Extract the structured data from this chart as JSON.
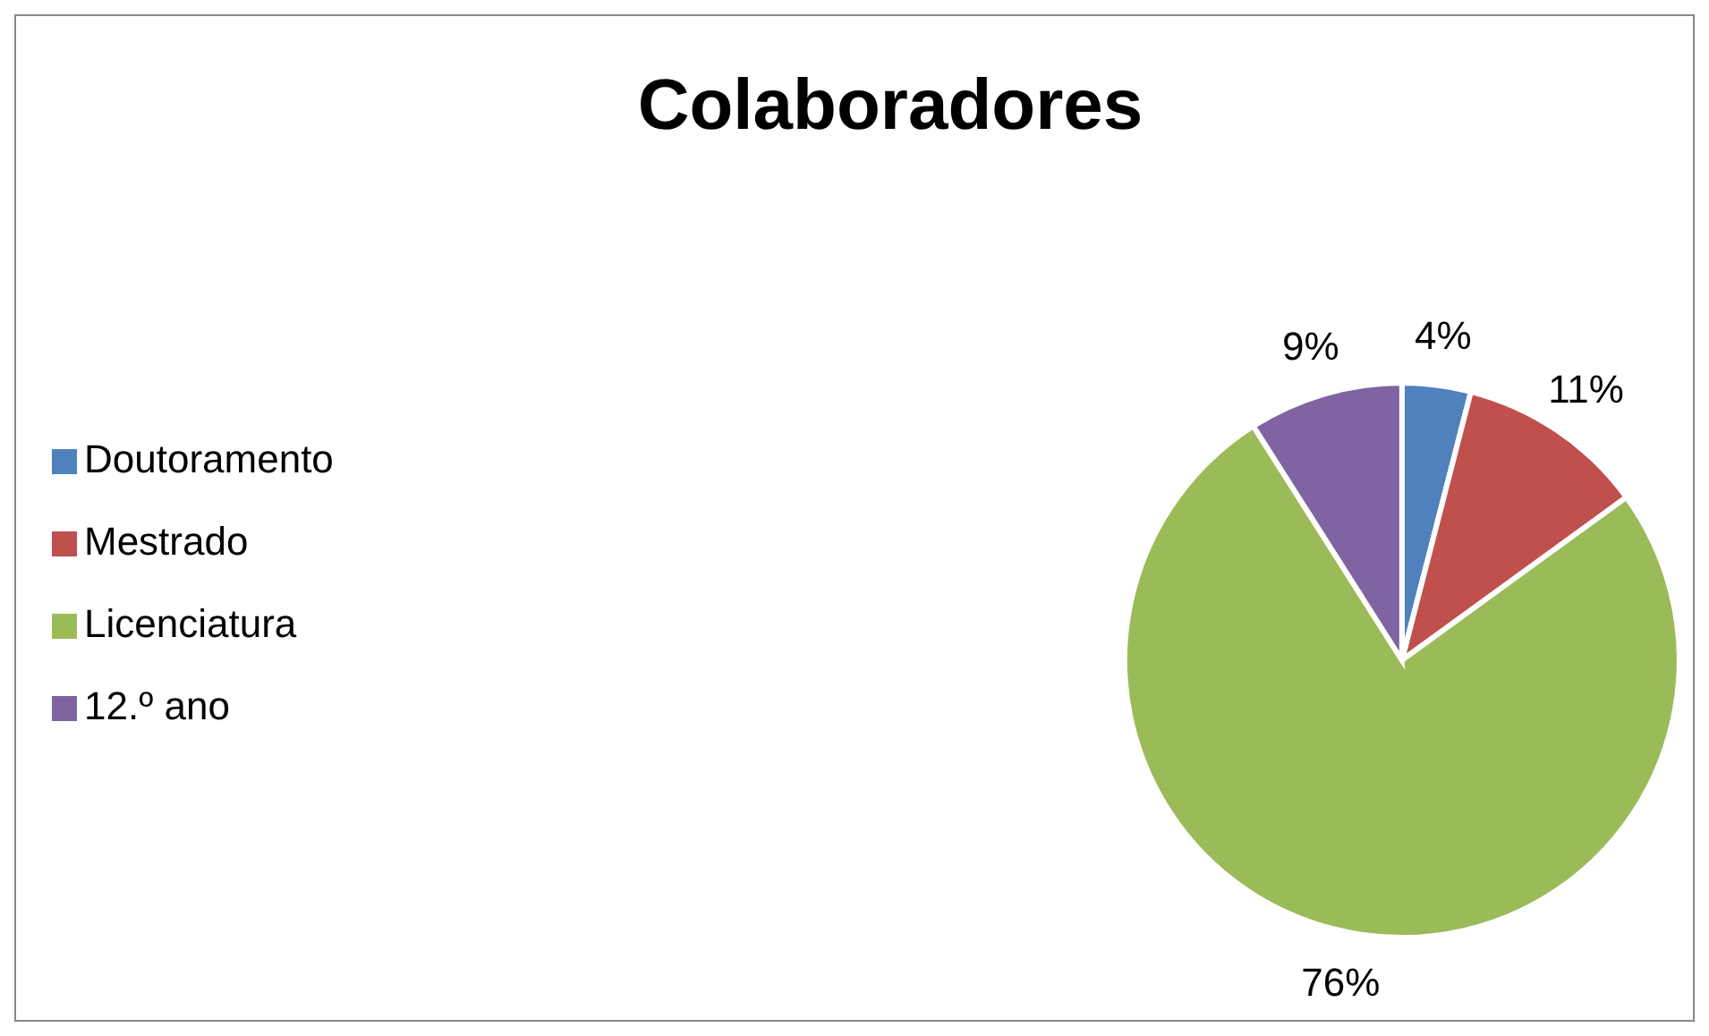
{
  "chart_data": {
    "type": "pie",
    "title": "Colaboradores",
    "categories": [
      "Doutoramento",
      "Mestrado",
      "Licenciatura",
      "12.º ano"
    ],
    "values": [
      4,
      11,
      76,
      9
    ],
    "colors": [
      "#4f81bd",
      "#c0504d",
      "#9bbb59",
      "#8064a2"
    ],
    "value_labels": [
      "4%",
      "11%",
      "76%",
      "9%"
    ],
    "legend": "left"
  }
}
